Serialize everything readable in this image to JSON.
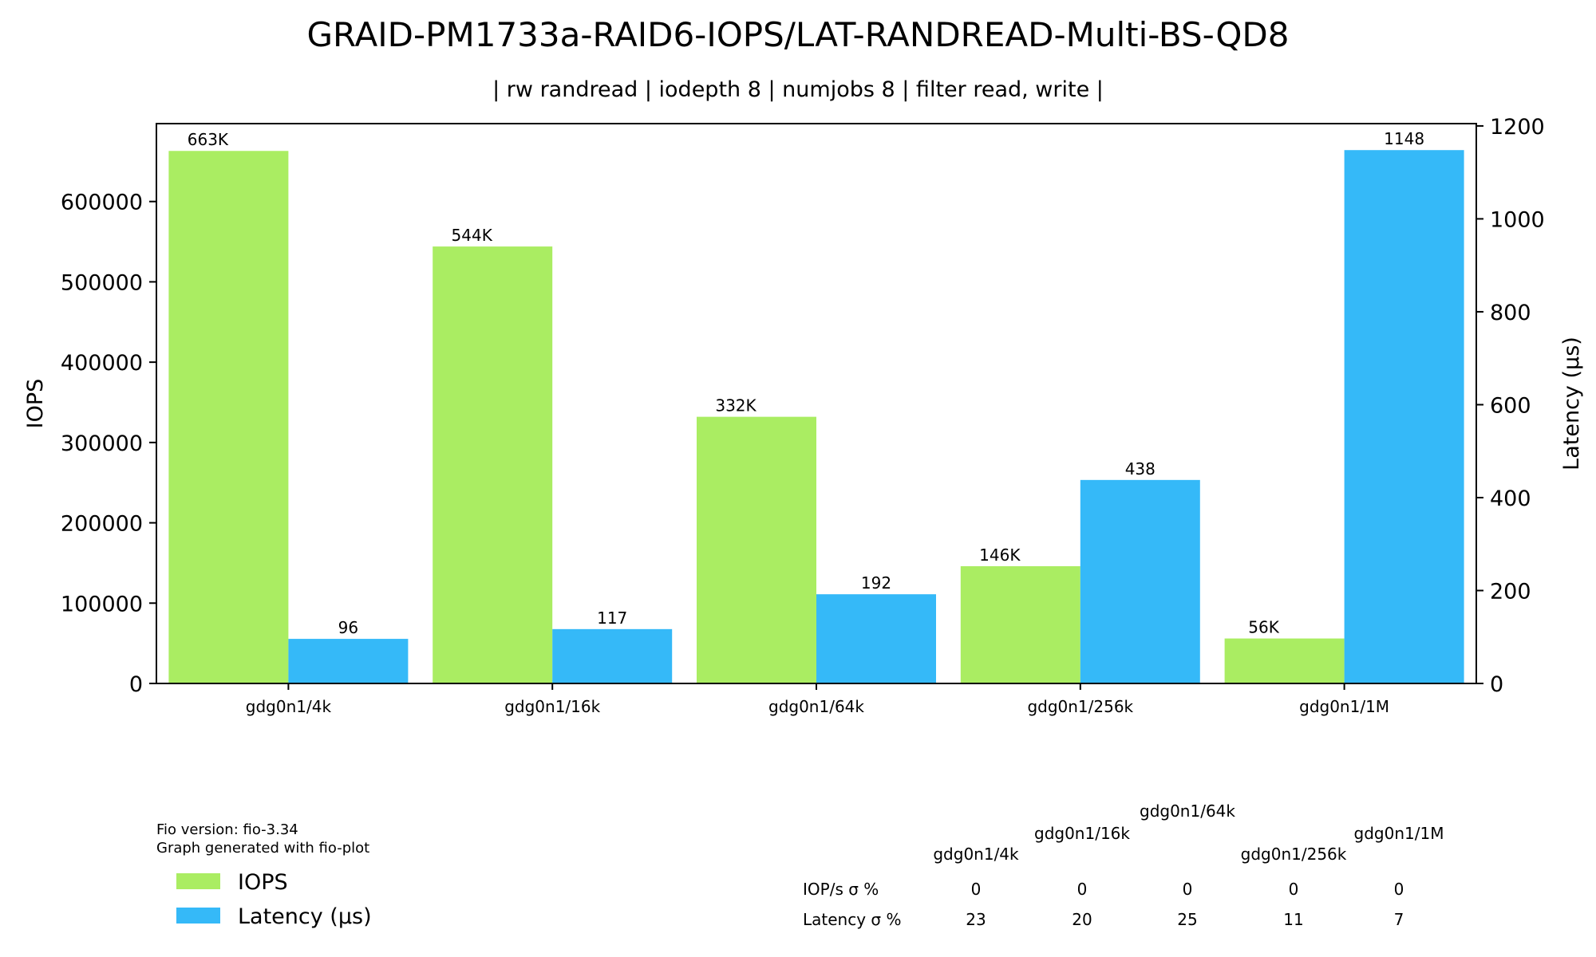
{
  "chart_data": {
    "type": "bar",
    "title": "GRAID-PM1733a-RAID6-IOPS/LAT-RANDREAD-Multi-BS-QD8",
    "subtitle": "| rw randread | iodepth 8 | numjobs 8 | filter read, write |",
    "categories": [
      "gdg0n1/4k",
      "gdg0n1/16k",
      "gdg0n1/64k",
      "gdg0n1/256k",
      "gdg0n1/1M"
    ],
    "series": [
      {
        "name": "IOPS",
        "axis": "left",
        "color": "#aaed62",
        "values": [
          663000,
          544000,
          332000,
          146000,
          56000
        ],
        "labels": [
          "663K",
          "544K",
          "332K",
          "146K",
          "56K"
        ]
      },
      {
        "name": "Latency (µs)",
        "axis": "right",
        "color": "#35b9f8",
        "values": [
          96,
          117,
          192,
          438,
          1148
        ],
        "labels": [
          "96",
          "117",
          "192",
          "438",
          "1148"
        ]
      }
    ],
    "ylabel": "IOPS",
    "y2label": "Latency (µs)",
    "ylim": [
      0,
      697000
    ],
    "y2lim": [
      0,
      1205
    ],
    "yticks": [
      "0",
      "100000",
      "200000",
      "300000",
      "400000",
      "500000",
      "600000"
    ],
    "y2ticks": [
      "0",
      "200",
      "400",
      "600",
      "800",
      "1000",
      "1200"
    ],
    "grid": false,
    "legend_position": "bottom-left"
  },
  "footer": {
    "version_line": "Fio version: fio-3.34",
    "generated_line": "Graph generated with fio-plot"
  },
  "stats_table": {
    "columns": [
      "gdg0n1/4k",
      "gdg0n1/16k",
      "gdg0n1/64k",
      "gdg0n1/256k",
      "gdg0n1/1M"
    ],
    "rows": [
      {
        "label": "IOP/s σ %",
        "values": [
          "0",
          "0",
          "0",
          "0",
          "0"
        ]
      },
      {
        "label": "Latency σ %",
        "values": [
          "23",
          "20",
          "25",
          "11",
          "7"
        ]
      }
    ]
  }
}
